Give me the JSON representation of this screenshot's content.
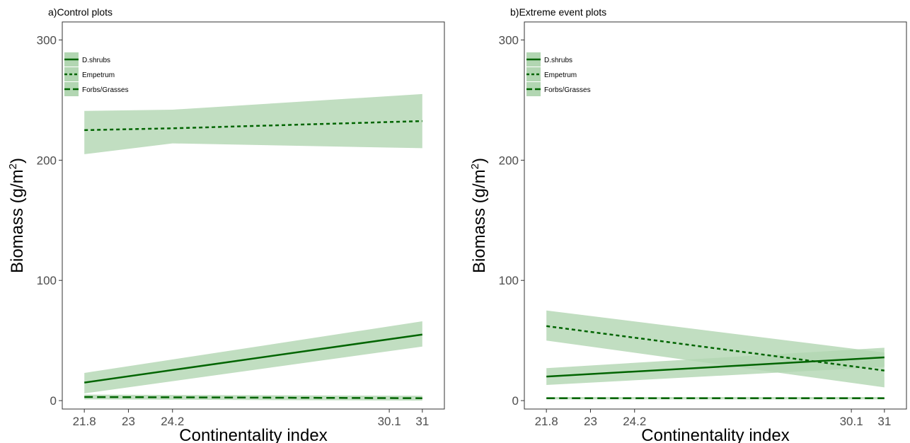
{
  "chart_data": [
    {
      "type": "line",
      "panel_title": "a)Control plots",
      "xlabel": "Continentality index",
      "ylabel": "Biomass (g/m",
      "ylabel_superscript": "2",
      "ylabel_close": ")",
      "xlim": [
        21.2,
        31.6
      ],
      "ylim": [
        -7,
        315
      ],
      "x_ticks": [
        21.8,
        23,
        24.2,
        30.1,
        31
      ],
      "x_tick_labels": [
        "21.8",
        "23",
        "24.2",
        "30.1",
        "31"
      ],
      "y_ticks": [
        0,
        100,
        200,
        300
      ],
      "y_tick_labels": [
        "0",
        "100",
        "200",
        "300"
      ],
      "grid": false,
      "legend": {
        "position": "top-left",
        "entries": [
          "D.shrubs",
          "Empetrum",
          "Forbs/Grasses"
        ]
      },
      "line_color": "#006400",
      "ribbon_color": "#b2d6b2",
      "series": [
        {
          "name": "D.shrubs",
          "linestyle": "solid",
          "x": [
            21.8,
            31
          ],
          "y": [
            15,
            55
          ],
          "ci_lower": [
            6,
            45
          ],
          "ci_upper": [
            23,
            66
          ]
        },
        {
          "name": "Empetrum",
          "linestyle": "dotted",
          "x": [
            21.8,
            24.2,
            31
          ],
          "y": [
            225,
            226.5,
            232.5
          ],
          "ci_lower": [
            205,
            214,
            210
          ],
          "ci_upper": [
            241,
            242,
            255
          ]
        },
        {
          "name": "Forbs/Grasses",
          "linestyle": "dashed",
          "x": [
            21.8,
            31
          ],
          "y": [
            3,
            2
          ],
          "ci_lower": [
            1,
            0
          ],
          "ci_upper": [
            5,
            4
          ]
        }
      ]
    },
    {
      "type": "line",
      "panel_title": "b)Extreme event plots",
      "xlabel": "Continentality index",
      "ylabel": "Biomass (g/m",
      "ylabel_superscript": "2",
      "ylabel_close": ")",
      "xlim": [
        21.2,
        31.6
      ],
      "ylim": [
        -7,
        315
      ],
      "x_ticks": [
        21.8,
        23,
        24.2,
        30.1,
        31
      ],
      "x_tick_labels": [
        "21.8",
        "23",
        "24.2",
        "30.1",
        "31"
      ],
      "y_ticks": [
        0,
        100,
        200,
        300
      ],
      "y_tick_labels": [
        "0",
        "100",
        "200",
        "300"
      ],
      "grid": false,
      "legend": {
        "position": "top-left",
        "entries": [
          "D.shrubs",
          "Empetrum",
          "Forbs/Grasses"
        ]
      },
      "line_color": "#006400",
      "ribbon_color": "#b2d6b2",
      "series": [
        {
          "name": "D.shrubs",
          "linestyle": "solid",
          "x": [
            21.8,
            31
          ],
          "y": [
            20,
            36
          ],
          "ci_lower": [
            13,
            28
          ],
          "ci_upper": [
            27,
            44
          ]
        },
        {
          "name": "Empetrum",
          "linestyle": "dotted",
          "x": [
            21.8,
            31
          ],
          "y": [
            62,
            25
          ],
          "ci_lower": [
            50,
            11
          ],
          "ci_upper": [
            75,
            40
          ]
        },
        {
          "name": "Forbs/Grasses",
          "linestyle": "dashed",
          "x": [
            21.8,
            31
          ],
          "y": [
            2,
            2
          ],
          "ci_lower": [
            1,
            1
          ],
          "ci_upper": [
            3,
            3
          ]
        }
      ]
    }
  ]
}
